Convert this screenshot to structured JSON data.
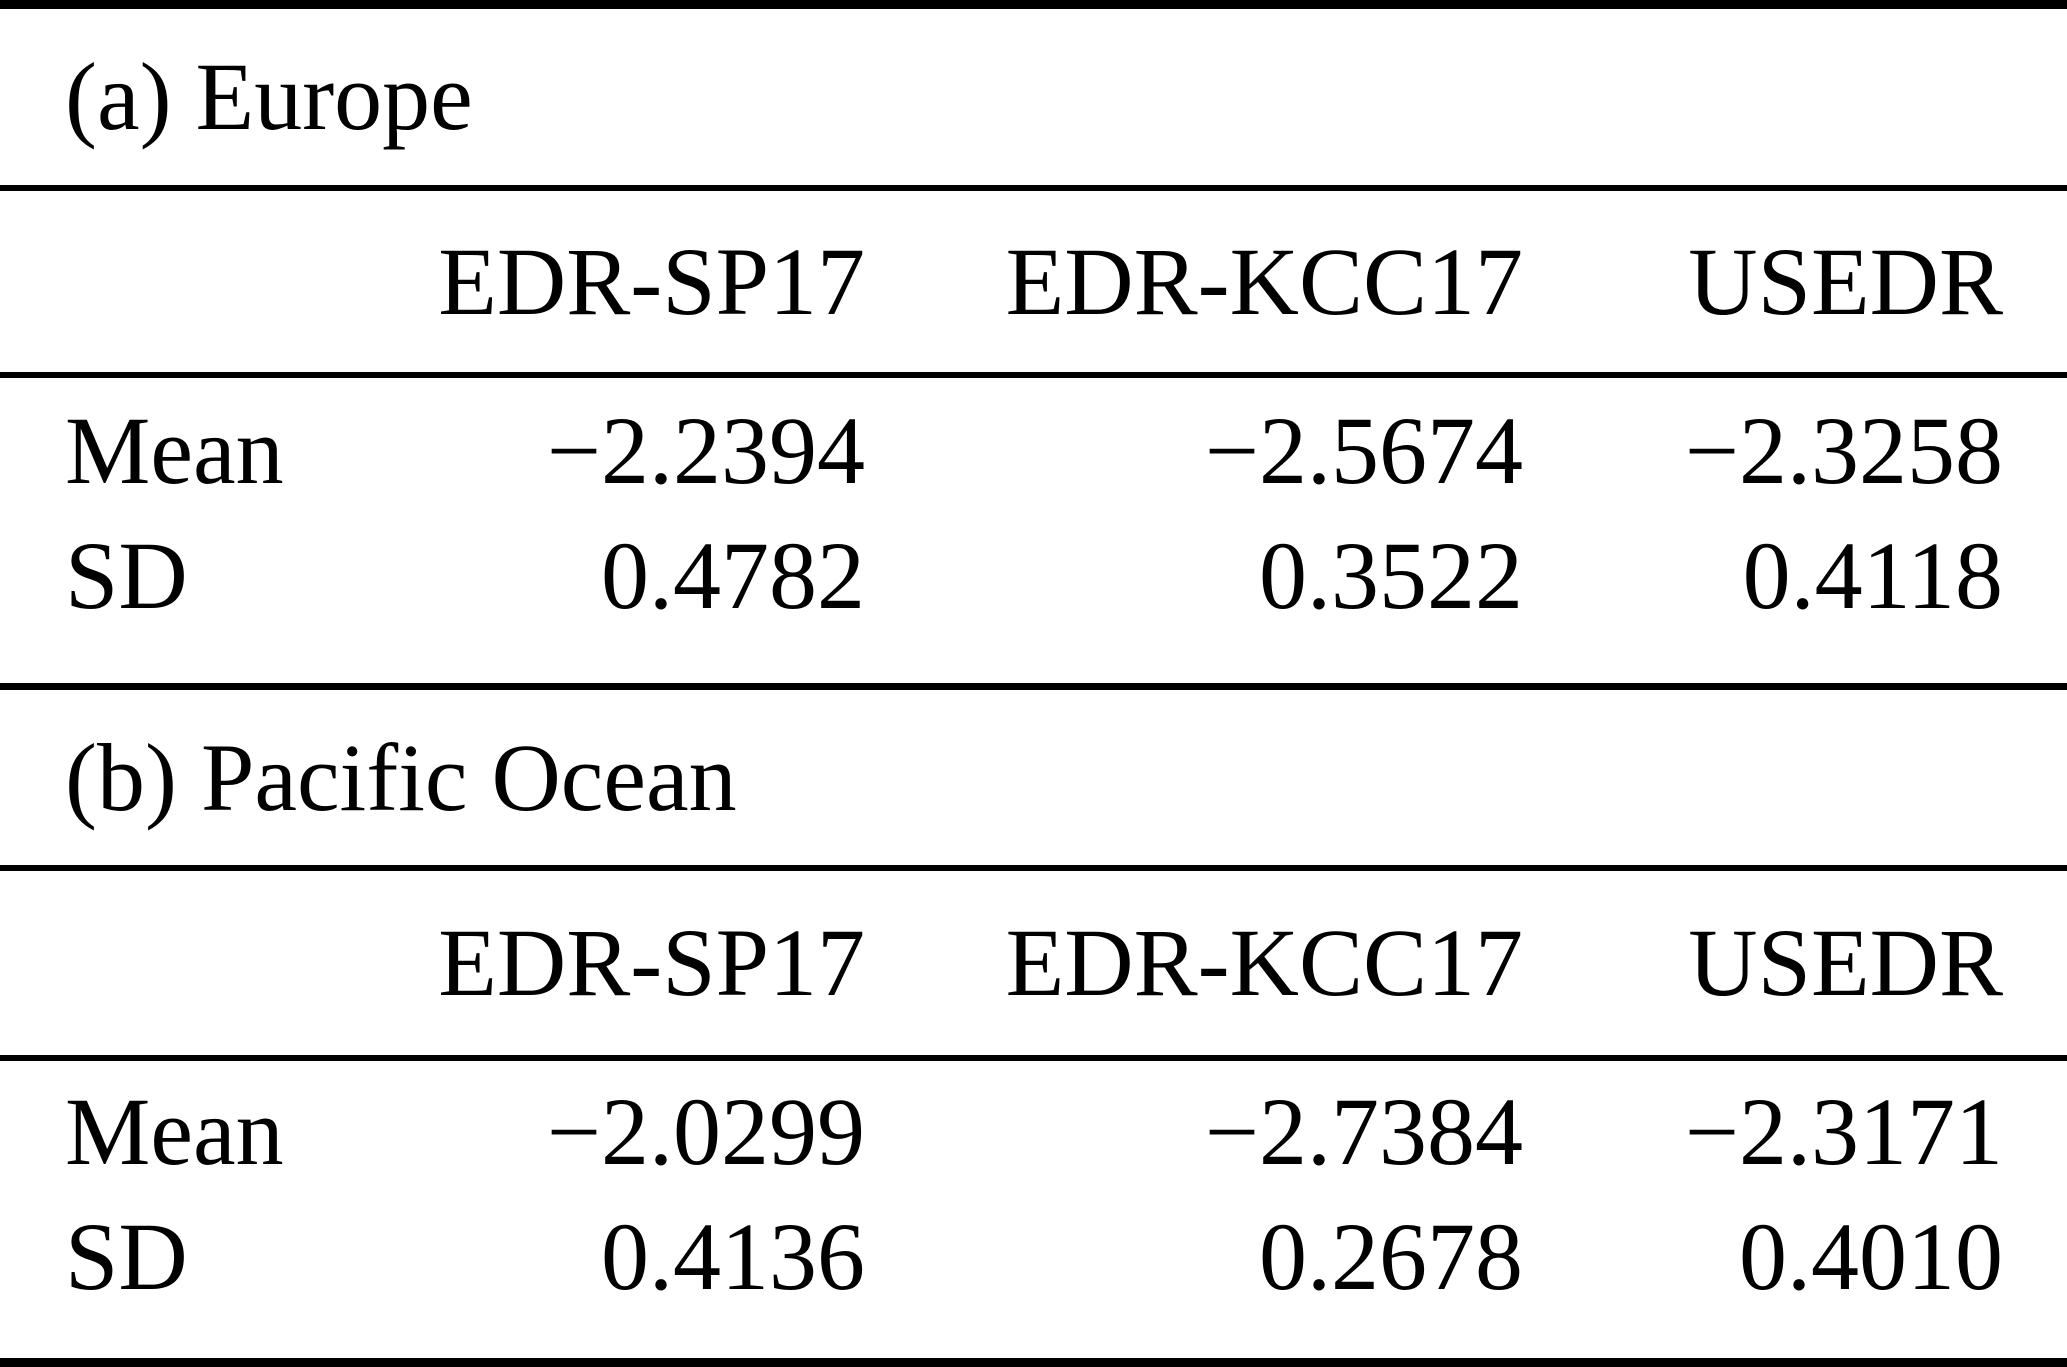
{
  "page": {
    "background_color": "#ffffff",
    "text_color": "#000000",
    "rule_color": "#000000"
  },
  "tables": [
    {
      "panel": "a",
      "title": "(a) Europe",
      "columns": [
        "EDR-SP17",
        "EDR-KCC17",
        "USEDR"
      ],
      "rows": [
        {
          "label": "Mean",
          "values": [
            "−2.2394",
            "−2.5674",
            "−2.3258"
          ]
        },
        {
          "label": "SD",
          "values": [
            "0.4782",
            "0.3522",
            "0.4118"
          ]
        }
      ]
    },
    {
      "panel": "b",
      "title": "(b) Pacific Ocean",
      "columns": [
        "EDR-SP17",
        "EDR-KCC17",
        "USEDR"
      ],
      "rows": [
        {
          "label": "Mean",
          "values": [
            "−2.0299",
            "−2.7384",
            "−2.3171"
          ]
        },
        {
          "label": "SD",
          "values": [
            "0.4136",
            "0.2678",
            "0.4010"
          ]
        }
      ]
    }
  ],
  "chart_data": {
    "type": "table",
    "panels": [
      {
        "title": "(a) Europe",
        "columns": [
          "EDR-SP17",
          "EDR-KCC17",
          "USEDR"
        ],
        "Mean": [
          -2.2394,
          -2.5674,
          -2.3258
        ],
        "SD": [
          0.4782,
          0.3522,
          0.4118
        ]
      },
      {
        "title": "(b) Pacific Ocean",
        "columns": [
          "EDR-SP17",
          "EDR-KCC17",
          "USEDR"
        ],
        "Mean": [
          -2.0299,
          -2.7384,
          -2.3171
        ],
        "SD": [
          0.4136,
          0.2678,
          0.401
        ]
      }
    ]
  }
}
